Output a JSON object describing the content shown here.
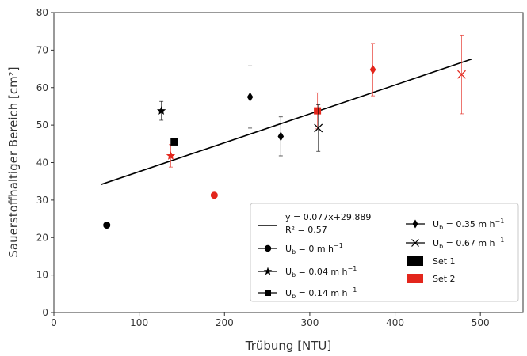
{
  "chart_data": {
    "type": "scatter",
    "xlabel": "Trübung [NTU]",
    "ylabel": "Sauerstoffhaltiger Bereich [cm²]",
    "xlim": [
      0,
      550
    ],
    "ylim": [
      0,
      80
    ],
    "xticks": [
      0,
      100,
      200,
      300,
      400,
      500
    ],
    "yticks": [
      0,
      10,
      20,
      30,
      40,
      50,
      60,
      70,
      80
    ],
    "grid": false,
    "legend_position": "bottom-right",
    "fit": {
      "equation": "y = 0.077x+29.889",
      "r2": "R² = 0.57",
      "slope": 0.077,
      "intercept": 29.889,
      "x_range": [
        55,
        490
      ],
      "color": "#000000"
    },
    "set_colors": {
      "Set 1": "#000000",
      "Set 2": "#e3261c"
    },
    "series": [
      {
        "name": "Ub = 0 m h⁻¹",
        "marker": "circle",
        "points": [
          {
            "x": 62,
            "y": 23.3,
            "err": 0,
            "set": "Set 1"
          },
          {
            "x": 188,
            "y": 31.3,
            "err": 0,
            "set": "Set 2"
          }
        ]
      },
      {
        "name": "Ub = 0.04 m h⁻¹",
        "marker": "star",
        "points": [
          {
            "x": 126,
            "y": 53.8,
            "err": 2.5,
            "set": "Set 1"
          },
          {
            "x": 137,
            "y": 41.8,
            "err": 3,
            "set": "Set 2"
          }
        ]
      },
      {
        "name": "Ub = 0.14 m h⁻¹",
        "marker": "square",
        "points": [
          {
            "x": 141,
            "y": 45.5,
            "err": 0,
            "set": "Set 1"
          },
          {
            "x": 309,
            "y": 53.8,
            "err": 4.8,
            "set": "Set 2"
          }
        ]
      },
      {
        "name": "Ub = 0.35 m h⁻¹",
        "marker": "diamond",
        "points": [
          {
            "x": 230,
            "y": 57.5,
            "err": 8.3,
            "set": "Set 1"
          },
          {
            "x": 266,
            "y": 47,
            "err": 5.2,
            "set": "Set 1"
          },
          {
            "x": 374,
            "y": 64.8,
            "err": 7,
            "set": "Set 2"
          }
        ]
      },
      {
        "name": "Ub = 0.67 m h⁻¹",
        "marker": "x",
        "points": [
          {
            "x": 310,
            "y": 49.2,
            "err": 6.2,
            "set": "Set 1"
          },
          {
            "x": 478,
            "y": 63.5,
            "err": 10.5,
            "set": "Set 2"
          }
        ]
      }
    ]
  },
  "legend": {
    "fit_line": "y = 0.077x+29.889",
    "fit_r2": "R² = 0.57",
    "u0": {
      "base": "U",
      "sub": "b",
      "value": " = 0 m h",
      "sup": "−1"
    },
    "u004": {
      "base": "U",
      "sub": "b",
      "value": " = 0.04 m h",
      "sup": "−1"
    },
    "u014": {
      "base": "U",
      "sub": "b",
      "value": " = 0.14 m h",
      "sup": "−1"
    },
    "u035": {
      "base": "U",
      "sub": "b",
      "value": " = 0.35 m h",
      "sup": "−1"
    },
    "u067": {
      "base": "U",
      "sub": "b",
      "value": " = 0.67 m h",
      "sup": "−1"
    },
    "set1": "Set 1",
    "set2": "Set 2"
  }
}
